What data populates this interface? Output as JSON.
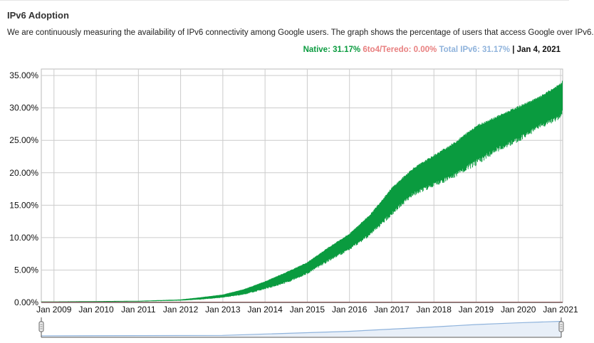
{
  "header": {
    "title": "IPv6 Adoption",
    "description": "We are continuously measuring the availability of IPv6 connectivity among Google users. The graph shows the percentage of users that access Google over IPv6."
  },
  "legend": {
    "native": "Native: 31.17%",
    "teredo": "6to4/Teredo: 0.00%",
    "total": "Total IPv6: 31.17%",
    "separator": "|",
    "date": "Jan 4, 2021"
  },
  "colors": {
    "native": "#0a9b3f",
    "teredo": "#e87f7f",
    "total": "#8fb3dc",
    "grid": "#cccccc"
  },
  "chart_data": {
    "type": "area",
    "title": "IPv6 Adoption",
    "xlabel": "",
    "ylabel": "",
    "ylim": [
      0,
      36
    ],
    "grid": true,
    "legend_position": "top-right",
    "categories": [
      "Jan 2009",
      "Jan 2010",
      "Jan 2011",
      "Jan 2012",
      "Jan 2013",
      "Jan 2014",
      "Jan 2015",
      "Jan 2016",
      "Jan 2017",
      "Jan 2018",
      "Jan 2019",
      "Jan 2020",
      "Jan 2021"
    ],
    "yticks": [
      "0.00%",
      "5.00%",
      "10.00%",
      "15.00%",
      "20.00%",
      "25.00%",
      "30.00%",
      "35.00%"
    ],
    "ytick_values": [
      0,
      5,
      10,
      15,
      20,
      25,
      30,
      35
    ],
    "series": [
      {
        "name": "Native",
        "x": [
          2008.7,
          2009,
          2010,
          2011,
          2012,
          2012.5,
          2013,
          2013.5,
          2014,
          2014.5,
          2015,
          2015.5,
          2016,
          2016.5,
          2017,
          2017.5,
          2018,
          2018.5,
          2019,
          2019.5,
          2020,
          2020.5,
          2021,
          2021.05
        ],
        "low": [
          0.1,
          0.1,
          0.1,
          0.15,
          0.3,
          0.5,
          0.8,
          1.3,
          2.2,
          3.2,
          4.6,
          6.6,
          8.4,
          10.8,
          14.0,
          17.0,
          18.5,
          20.0,
          22.0,
          24.0,
          25.5,
          27.5,
          29.0,
          30.0
        ],
        "high": [
          0.15,
          0.15,
          0.2,
          0.25,
          0.45,
          0.8,
          1.2,
          2.0,
          3.2,
          4.6,
          6.1,
          8.4,
          10.5,
          13.5,
          17.5,
          20.5,
          22.5,
          24.5,
          27.0,
          28.5,
          30.0,
          31.5,
          33.5,
          34.0
        ]
      },
      {
        "name": "6to4/Teredo",
        "x": [
          2008.7,
          2021.05
        ],
        "low": [
          0.0,
          0.0
        ],
        "high": [
          0.0,
          0.0
        ]
      }
    ],
    "navigator": {
      "x": [
        2008.7,
        2013,
        2016,
        2018,
        2019,
        2020,
        2021.05
      ],
      "values": [
        0.1,
        1.2,
        10.5,
        20.5,
        26.0,
        30.0,
        33.5
      ]
    }
  }
}
